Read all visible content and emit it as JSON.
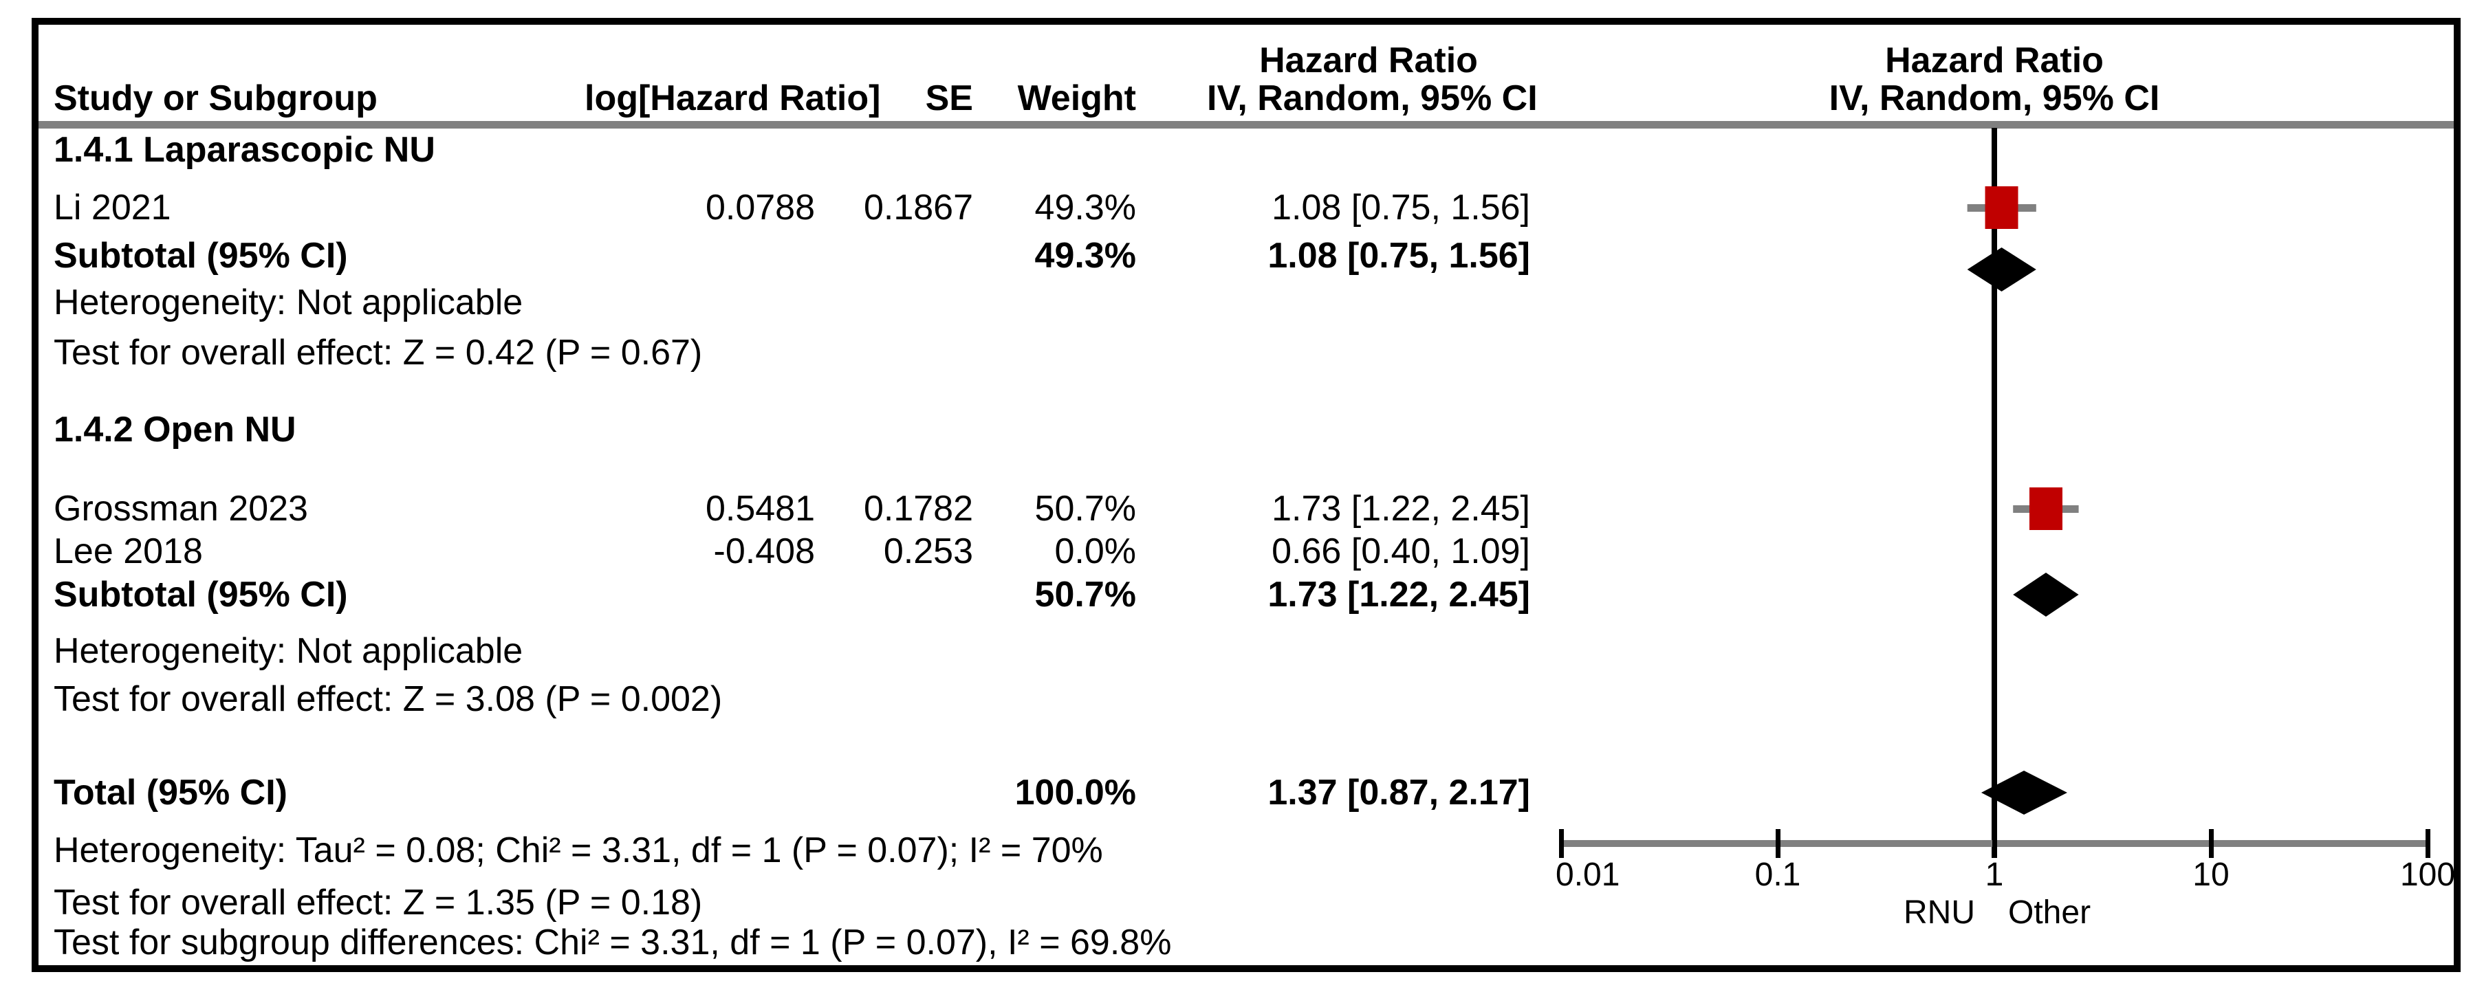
{
  "header": {
    "left_hr_title": "Hazard Ratio",
    "cols": {
      "study": "Study or Subgroup",
      "loghr": "log[Hazard Ratio]",
      "se": "SE",
      "weight": "Weight",
      "ci": "IV, Random, 95% CI"
    },
    "plot_hr_title": "Hazard Ratio",
    "plot_ci_subtitle": "IV, Random, 95% CI"
  },
  "rows": {
    "section1_title": "1.4.1 Laparascopic NU",
    "li": {
      "name": "Li 2021",
      "loghr": "0.0788",
      "se": "0.1867",
      "weight": "49.3%",
      "ci": "1.08 [0.75, 1.56]"
    },
    "sub1": {
      "name": "Subtotal (95% CI)",
      "weight": "49.3%",
      "ci": "1.08 [0.75, 1.56]"
    },
    "het1": "Heterogeneity: Not applicable",
    "test1": "Test for overall effect: Z = 0.42 (P = 0.67)",
    "section2_title": "1.4.2 Open NU",
    "grossman": {
      "name": "Grossman 2023",
      "loghr": "0.5481",
      "se": "0.1782",
      "weight": "50.7%",
      "ci": "1.73 [1.22, 2.45]"
    },
    "lee": {
      "name": "Lee 2018",
      "loghr": "-0.408",
      "se": "0.253",
      "weight": "0.0%",
      "ci": "0.66 [0.40, 1.09]"
    },
    "sub2": {
      "name": "Subtotal (95% CI)",
      "weight": "50.7%",
      "ci": "1.73 [1.22, 2.45]"
    },
    "het2": "Heterogeneity: Not applicable",
    "test2": "Test for overall effect: Z = 3.08 (P = 0.002)",
    "total": {
      "name": "Total (95% CI)",
      "weight": "100.0%",
      "ci": "1.37 [0.87, 2.17]"
    },
    "het_total": "Heterogeneity: Tau² = 0.08; Chi² = 3.31, df = 1 (P = 0.07); I² = 70%",
    "test_total": "Test for overall effect: Z = 1.35 (P = 0.18)",
    "test_subgroup": "Test for subgroup differences: Chi² = 3.31, df = 1 (P = 0.07), I² = 69.8%"
  },
  "axis": {
    "ticks": [
      "0.01",
      "0.1",
      "1",
      "10",
      "100"
    ],
    "left_label": "RNU",
    "right_label": "Other"
  },
  "colors": {
    "study_marker": "#c00000",
    "ci_line": "#808080",
    "diamond": "#000000",
    "rule": "#808080"
  },
  "chart_data": {
    "type": "forest",
    "effect_measure": "Hazard Ratio",
    "model": "IV, Random, 95% CI",
    "x_scale": "log10",
    "xlim": [
      0.01,
      100
    ],
    "x_tick_values": [
      0.01,
      0.1,
      1,
      10,
      100
    ],
    "axis_labels": {
      "left": "RNU",
      "right": "Other"
    },
    "rows": [
      {
        "id": "li",
        "kind": "study",
        "section": "1.4.1 Laparascopic NU",
        "label": "Li 2021",
        "log_hr": 0.0788,
        "se": 0.1867,
        "weight_pct": 49.3,
        "hr": 1.08,
        "lo": 0.75,
        "hi": 1.56
      },
      {
        "id": "sub1",
        "kind": "subtotal",
        "section": "1.4.1 Laparascopic NU",
        "label": "Subtotal (95% CI)",
        "weight_pct": 49.3,
        "hr": 1.08,
        "lo": 0.75,
        "hi": 1.56
      },
      {
        "id": "grossman",
        "kind": "study",
        "section": "1.4.2 Open NU",
        "label": "Grossman 2023",
        "log_hr": 0.5481,
        "se": 0.1782,
        "weight_pct": 50.7,
        "hr": 1.73,
        "lo": 1.22,
        "hi": 2.45
      },
      {
        "id": "lee",
        "kind": "study",
        "section": "1.4.2 Open NU",
        "label": "Lee 2018",
        "log_hr": -0.408,
        "se": 0.253,
        "weight_pct": 0.0,
        "hr": 0.66,
        "lo": 0.4,
        "hi": 1.09
      },
      {
        "id": "sub2",
        "kind": "subtotal",
        "section": "1.4.2 Open NU",
        "label": "Subtotal (95% CI)",
        "weight_pct": 50.7,
        "hr": 1.73,
        "lo": 1.22,
        "hi": 2.45
      },
      {
        "id": "total",
        "kind": "total",
        "label": "Total (95% CI)",
        "weight_pct": 100.0,
        "hr": 1.37,
        "lo": 0.87,
        "hi": 2.17
      }
    ],
    "statistics": {
      "subgroup1": {
        "heterogeneity": "Not applicable",
        "overall_effect_z": 0.42,
        "overall_effect_p": 0.67
      },
      "subgroup2": {
        "heterogeneity": "Not applicable",
        "overall_effect_z": 3.08,
        "overall_effect_p": 0.002
      },
      "total": {
        "tau2": 0.08,
        "chi2": 3.31,
        "df": 1,
        "p_het": 0.07,
        "i2_pct": 70,
        "overall_effect_z": 1.35,
        "overall_effect_p": 0.18
      },
      "subgroup_differences": {
        "chi2": 3.31,
        "df": 1,
        "p": 0.07,
        "i2_pct": 69.8
      }
    }
  }
}
